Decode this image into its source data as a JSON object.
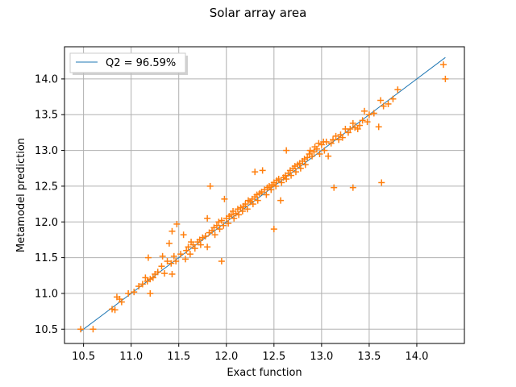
{
  "chart_data": {
    "type": "scatter",
    "title": "Solar array area",
    "xlabel": "Exact function",
    "ylabel": "Metamodel prediction",
    "xlim": [
      10.3,
      14.5
    ],
    "ylim": [
      10.3,
      14.45
    ],
    "x_ticks": [
      10.5,
      11.0,
      11.5,
      12.0,
      12.5,
      13.0,
      13.5,
      14.0
    ],
    "x_tick_labels": [
      "10.5",
      "11.0",
      "11.5",
      "12.0",
      "12.5",
      "13.0",
      "13.5",
      "14.0"
    ],
    "y_ticks": [
      10.5,
      11.0,
      11.5,
      12.0,
      12.5,
      13.0,
      13.5,
      14.0
    ],
    "y_tick_labels": [
      "10.5",
      "11.0",
      "11.5",
      "12.0",
      "12.5",
      "13.0",
      "13.5",
      "14.0"
    ],
    "grid": true,
    "legend_position": "top-left",
    "line": {
      "label": "Q2 = 96.59%",
      "x": [
        10.47,
        14.3
      ],
      "y": [
        10.47,
        14.3
      ],
      "color": "#1f77b4"
    },
    "scatter_color": "#ff7f0e",
    "points": [
      [
        10.47,
        10.5
      ],
      [
        10.6,
        10.5
      ],
      [
        10.8,
        10.78
      ],
      [
        10.83,
        10.77
      ],
      [
        10.85,
        10.95
      ],
      [
        10.88,
        10.92
      ],
      [
        10.9,
        10.88
      ],
      [
        10.97,
        11.0
      ],
      [
        11.03,
        11.02
      ],
      [
        11.08,
        11.1
      ],
      [
        11.12,
        11.13
      ],
      [
        11.15,
        11.22
      ],
      [
        11.17,
        11.17
      ],
      [
        11.18,
        11.5
      ],
      [
        11.2,
        11.2
      ],
      [
        11.2,
        11.0
      ],
      [
        11.23,
        11.22
      ],
      [
        11.25,
        11.27
      ],
      [
        11.28,
        11.3
      ],
      [
        11.32,
        11.38
      ],
      [
        11.33,
        11.52
      ],
      [
        11.35,
        11.28
      ],
      [
        11.38,
        11.45
      ],
      [
        11.4,
        11.7
      ],
      [
        11.42,
        11.42
      ],
      [
        11.43,
        11.87
      ],
      [
        11.43,
        11.27
      ],
      [
        11.45,
        11.52
      ],
      [
        11.47,
        11.45
      ],
      [
        11.48,
        11.97
      ],
      [
        11.52,
        11.55
      ],
      [
        11.55,
        11.82
      ],
      [
        11.57,
        11.48
      ],
      [
        11.58,
        11.6
      ],
      [
        11.6,
        11.65
      ],
      [
        11.62,
        11.55
      ],
      [
        11.63,
        11.72
      ],
      [
        11.65,
        11.68
      ],
      [
        11.67,
        11.63
      ],
      [
        11.7,
        11.72
      ],
      [
        11.72,
        11.75
      ],
      [
        11.73,
        11.68
      ],
      [
        11.75,
        11.78
      ],
      [
        11.78,
        11.8
      ],
      [
        11.8,
        11.65
      ],
      [
        11.8,
        12.05
      ],
      [
        11.82,
        11.85
      ],
      [
        11.83,
        12.5
      ],
      [
        11.85,
        11.88
      ],
      [
        11.87,
        11.92
      ],
      [
        11.88,
        11.82
      ],
      [
        11.9,
        11.95
      ],
      [
        11.92,
        12.0
      ],
      [
        11.93,
        11.9
      ],
      [
        11.95,
        11.45
      ],
      [
        11.95,
        12.02
      ],
      [
        11.97,
        11.95
      ],
      [
        11.98,
        12.32
      ],
      [
        12.0,
        12.05
      ],
      [
        12.02,
        11.98
      ],
      [
        12.03,
        12.08
      ],
      [
        12.05,
        12.1
      ],
      [
        12.07,
        12.15
      ],
      [
        12.08,
        12.05
      ],
      [
        12.1,
        12.12
      ],
      [
        12.12,
        12.18
      ],
      [
        12.13,
        12.1
      ],
      [
        12.15,
        12.2
      ],
      [
        12.17,
        12.15
      ],
      [
        12.18,
        12.22
      ],
      [
        12.2,
        12.25
      ],
      [
        12.22,
        12.18
      ],
      [
        12.23,
        12.3
      ],
      [
        12.25,
        12.28
      ],
      [
        12.27,
        12.32
      ],
      [
        12.28,
        12.25
      ],
      [
        12.3,
        12.35
      ],
      [
        12.3,
        12.7
      ],
      [
        12.32,
        12.38
      ],
      [
        12.33,
        12.3
      ],
      [
        12.35,
        12.4
      ],
      [
        12.37,
        12.42
      ],
      [
        12.38,
        12.72
      ],
      [
        12.4,
        12.45
      ],
      [
        12.42,
        12.38
      ],
      [
        12.43,
        12.48
      ],
      [
        12.45,
        12.5
      ],
      [
        12.47,
        12.45
      ],
      [
        12.48,
        12.52
      ],
      [
        12.5,
        11.9
      ],
      [
        12.5,
        12.55
      ],
      [
        12.52,
        12.5
      ],
      [
        12.53,
        12.58
      ],
      [
        12.55,
        12.6
      ],
      [
        12.57,
        12.3
      ],
      [
        12.58,
        12.55
      ],
      [
        12.6,
        12.62
      ],
      [
        12.62,
        12.65
      ],
      [
        12.63,
        12.6
      ],
      [
        12.63,
        13.0
      ],
      [
        12.65,
        12.68
      ],
      [
        12.67,
        12.72
      ],
      [
        12.68,
        12.65
      ],
      [
        12.7,
        12.75
      ],
      [
        12.72,
        12.78
      ],
      [
        12.73,
        12.7
      ],
      [
        12.75,
        12.8
      ],
      [
        12.77,
        12.82
      ],
      [
        12.78,
        12.75
      ],
      [
        12.8,
        12.85
      ],
      [
        12.82,
        12.88
      ],
      [
        12.83,
        12.8
      ],
      [
        12.85,
        12.9
      ],
      [
        12.87,
        12.95
      ],
      [
        12.88,
        13.0
      ],
      [
        12.9,
        12.92
      ],
      [
        12.92,
        12.98
      ],
      [
        12.93,
        13.05
      ],
      [
        12.95,
        13.02
      ],
      [
        12.97,
        13.1
      ],
      [
        12.98,
        12.95
      ],
      [
        13.0,
        13.08
      ],
      [
        13.02,
        13.12
      ],
      [
        13.03,
        13.0
      ],
      [
        13.05,
        13.12
      ],
      [
        13.07,
        12.92
      ],
      [
        13.1,
        13.1
      ],
      [
        13.12,
        13.15
      ],
      [
        13.13,
        12.48
      ],
      [
        13.15,
        13.2
      ],
      [
        13.18,
        13.15
      ],
      [
        13.2,
        13.22
      ],
      [
        13.22,
        13.18
      ],
      [
        13.25,
        13.3
      ],
      [
        13.28,
        13.25
      ],
      [
        13.3,
        13.3
      ],
      [
        13.33,
        13.38
      ],
      [
        13.33,
        12.48
      ],
      [
        13.35,
        13.32
      ],
      [
        13.38,
        13.3
      ],
      [
        13.4,
        13.35
      ],
      [
        13.43,
        13.42
      ],
      [
        13.45,
        13.55
      ],
      [
        13.48,
        13.4
      ],
      [
        13.5,
        13.5
      ],
      [
        13.55,
        13.52
      ],
      [
        13.6,
        13.33
      ],
      [
        13.62,
        13.7
      ],
      [
        13.63,
        12.55
      ],
      [
        13.65,
        13.62
      ],
      [
        13.7,
        13.65
      ],
      [
        13.75,
        13.72
      ],
      [
        13.8,
        13.85
      ],
      [
        14.28,
        14.2
      ],
      [
        14.3,
        14.0
      ]
    ]
  }
}
